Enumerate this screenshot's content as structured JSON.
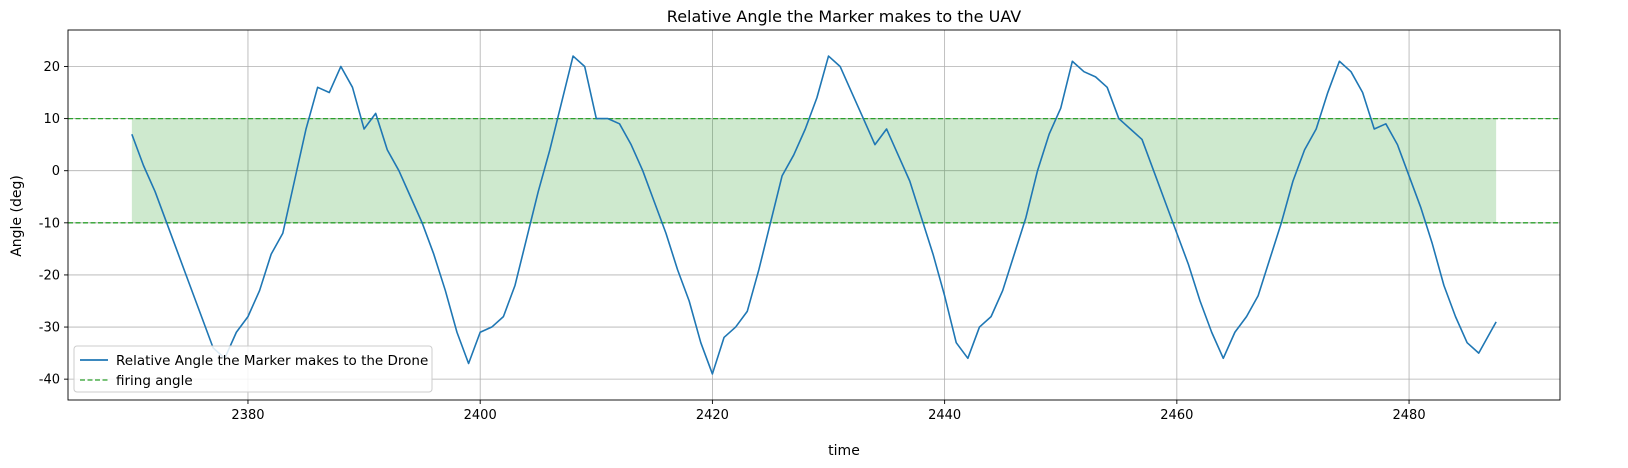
{
  "chart_data": {
    "type": "line",
    "title": "Relative Angle the Marker makes to the UAV",
    "xlabel": "time",
    "ylabel": "Angle (deg)",
    "xlim": [
      2364.5,
      2493
    ],
    "ylim": [
      -44,
      27
    ],
    "xticks": [
      2380,
      2400,
      2420,
      2440,
      2460,
      2480
    ],
    "yticks": [
      -40,
      -30,
      -20,
      -10,
      0,
      10,
      20
    ],
    "grid": true,
    "legend_position": "lower-left",
    "series": [
      {
        "name": "Relative Angle the Marker makes to the Drone",
        "color": "#1f77b4",
        "style": "solid",
        "x": [
          2370,
          2371,
          2372,
          2373,
          2374,
          2375,
          2376,
          2377,
          2378,
          2379,
          2380,
          2381,
          2382,
          2383,
          2384,
          2385,
          2386,
          2387,
          2388,
          2389,
          2390,
          2391,
          2392,
          2393,
          2394,
          2395,
          2396,
          2397,
          2398,
          2399,
          2400,
          2401,
          2402,
          2403,
          2404,
          2405,
          2406,
          2407,
          2408,
          2409,
          2410,
          2411,
          2412,
          2413,
          2414,
          2415,
          2416,
          2417,
          2418,
          2419,
          2420,
          2421,
          2422,
          2423,
          2424,
          2425,
          2426,
          2427,
          2428,
          2429,
          2430,
          2431,
          2432,
          2433,
          2434,
          2435,
          2436,
          2437,
          2438,
          2439,
          2440,
          2441,
          2442,
          2443,
          2444,
          2445,
          2446,
          2447,
          2448,
          2449,
          2450,
          2451,
          2452,
          2453,
          2454,
          2455,
          2456,
          2457,
          2458,
          2459,
          2460,
          2461,
          2462,
          2463,
          2464,
          2465,
          2466,
          2467,
          2468,
          2469,
          2470,
          2471,
          2472,
          2473,
          2474,
          2475,
          2476,
          2477,
          2478,
          2479,
          2480,
          2481,
          2482,
          2483,
          2484,
          2485,
          2486,
          2487,
          2487.5
        ],
        "y": [
          7,
          1,
          -4,
          -10,
          -16,
          -22,
          -28,
          -34,
          -36,
          -31,
          -28,
          -23,
          -16,
          -12,
          -2,
          8,
          16,
          15,
          20,
          16,
          8,
          11,
          4,
          0,
          -5,
          -10,
          -16,
          -23,
          -31,
          -37,
          -31,
          -30,
          -28,
          -22,
          -13,
          -4,
          4,
          13,
          22,
          20,
          10,
          10,
          9,
          5,
          0,
          -6,
          -12,
          -19,
          -25,
          -33,
          -39,
          -32,
          -30,
          -27,
          -19,
          -10,
          -1,
          3,
          8,
          14,
          22,
          20,
          15,
          10,
          5,
          8,
          3,
          -2,
          -9,
          -16,
          -24,
          -33,
          -36,
          -30,
          -28,
          -23,
          -16,
          -9,
          0,
          7,
          12,
          21,
          19,
          18,
          16,
          10,
          8,
          6,
          0,
          -6,
          -12,
          -18,
          -25,
          -31,
          -36,
          -31,
          -28,
          -24,
          -17,
          -10,
          -2,
          4,
          8,
          15,
          21,
          19,
          15,
          8,
          9,
          5,
          -1,
          -7,
          -14,
          -22,
          -28,
          -33,
          -35,
          -31,
          -29
        ]
      }
    ],
    "reference_lines": {
      "name": "firing angle",
      "color": "#2ca02c",
      "style": "dashed",
      "values": [
        10,
        -10
      ]
    },
    "shaded_region": {
      "x_range": [
        2370,
        2487.5
      ],
      "y_range": [
        -10,
        10
      ],
      "color": "#2ca02c",
      "opacity": 0.23
    }
  }
}
